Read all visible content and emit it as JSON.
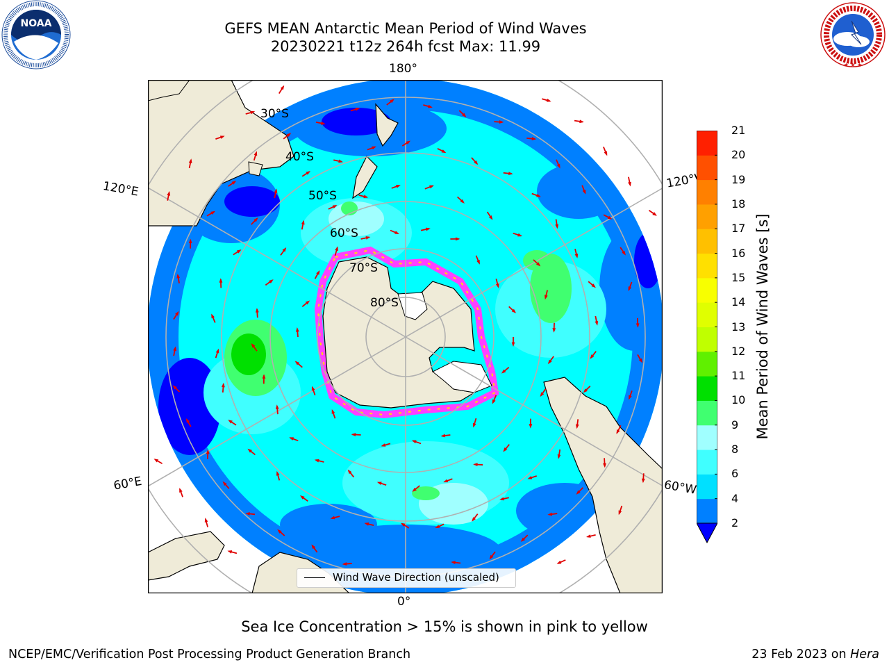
{
  "header": {
    "title_line1": "GEFS MEAN Antarctic Mean Period of Wind Waves",
    "title_line2": "20230221 t12z 264h fcst   Max: 11.99"
  },
  "logos": {
    "left": {
      "name": "NOAA",
      "text": "NOAA",
      "ring_text": "NATIONAL OCEANIC AND ATMOSPHERIC ADMINISTRATION · U.S. DEPARTMENT OF COMMERCE"
    },
    "right": {
      "name": "National Weather Service",
      "ring_text": "NATIONAL WEATHER SERVICE"
    }
  },
  "map": {
    "projection": "south polar stereographic",
    "longitude_labels": {
      "top": "180°",
      "bottom": "0°",
      "upper_left": "120°E",
      "upper_right": "120°W",
      "lower_left": "60°E",
      "lower_right": "60°W"
    },
    "latitude_labels": [
      "30°S",
      "40°S",
      "50°S",
      "60°S",
      "70°S",
      "80°S"
    ],
    "legend_label": "Wind Wave Direction (unscaled)",
    "arrow_color": "#e00000",
    "land_color": "#efebd8",
    "ocean_background": "#00ffff"
  },
  "colorbar": {
    "label": "Mean Period of Wind Waves [s]",
    "ticks": [
      "2",
      "4",
      "6",
      "8",
      "9",
      "10",
      "11",
      "12",
      "13",
      "14",
      "15",
      "16",
      "17",
      "18",
      "19",
      "20",
      "21"
    ],
    "colors": [
      "#0080ff",
      "#00e0ff",
      "#40ffff",
      "#a0ffff",
      "#40ff70",
      "#00e000",
      "#60f000",
      "#c0ff00",
      "#e0ff00",
      "#f8ff00",
      "#ffe000",
      "#ffc000",
      "#ffa000",
      "#ff8000",
      "#ff5000",
      "#ff2000",
      "#ff0000"
    ],
    "under_color": "#0000ff"
  },
  "footer": {
    "note": "Sea Ice Concentration > 15% is shown in pink to yellow",
    "credit": "NCEP/EMC/Verification Post Processing Product Generation Branch",
    "date": "23 Feb 2023 on",
    "host": "Hera"
  }
}
